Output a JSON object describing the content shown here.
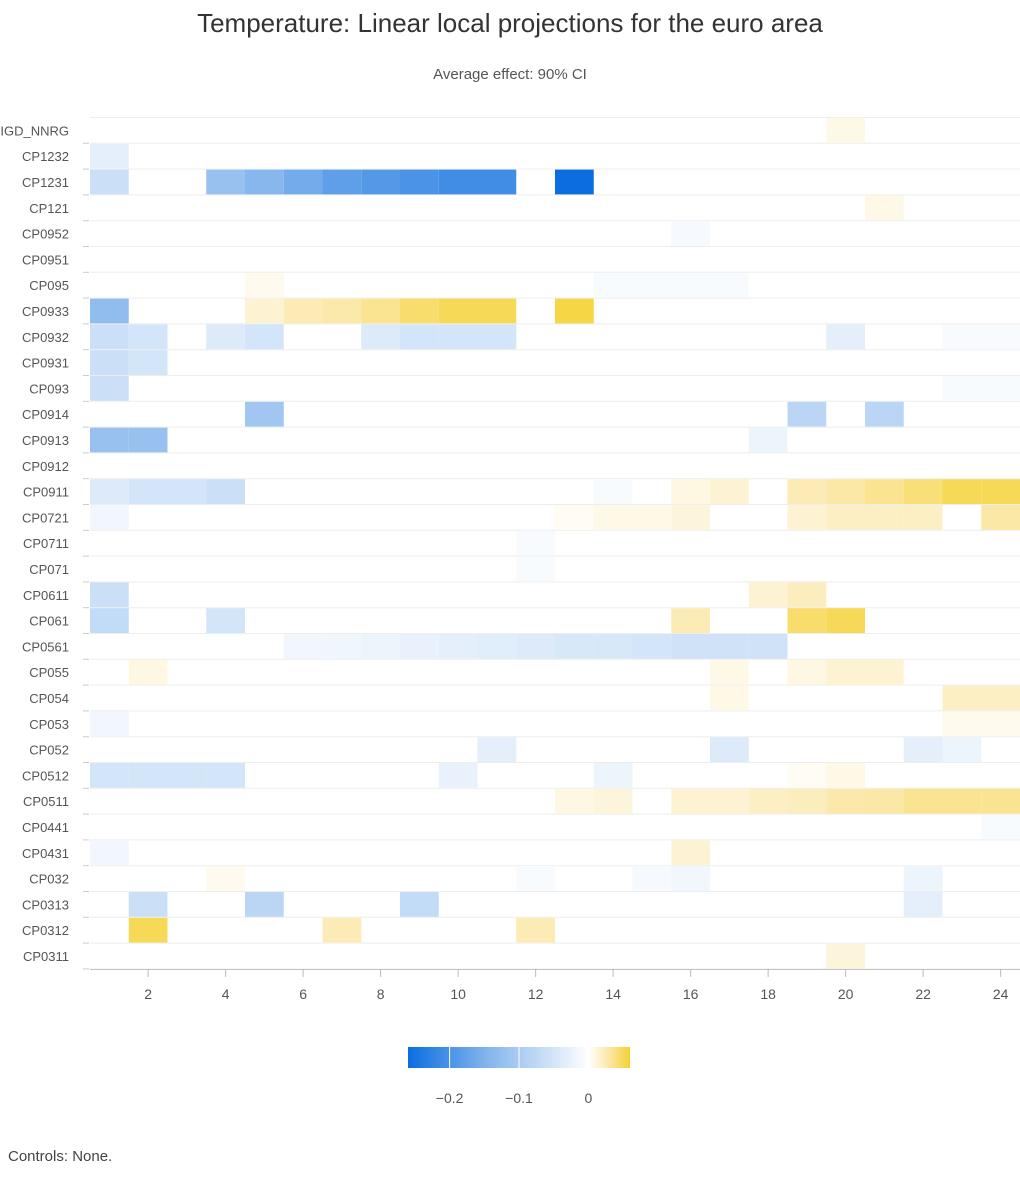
{
  "chart_data": {
    "type": "heatmap",
    "title": "Temperature: Linear local projections for the euro area",
    "subtitle": "Average effect: 90% CI",
    "footnote": "Controls: None.",
    "xlabel": "",
    "ylabel": "",
    "x": [
      1,
      2,
      3,
      4,
      5,
      6,
      7,
      8,
      9,
      10,
      11,
      12,
      13,
      14,
      15,
      16,
      17,
      18,
      19,
      20,
      21,
      22,
      23,
      24
    ],
    "x_ticks": [
      2,
      4,
      6,
      8,
      10,
      12,
      14,
      16,
      18,
      20,
      22,
      24
    ],
    "rows": [
      "IGD_NNRG",
      "CP1232",
      "CP1231",
      "CP121",
      "CP0952",
      "CP0951",
      "CP095",
      "CP0933",
      "CP0932",
      "CP0931",
      "CP093",
      "CP0914",
      "CP0913",
      "CP0912",
      "CP0911",
      "CP0721",
      "CP0711",
      "CP071",
      "CP0611",
      "CP061",
      "CP0561",
      "CP055",
      "CP054",
      "CP053",
      "CP052",
      "CP0512",
      "CP0511",
      "CP0441",
      "CP0431",
      "CP032",
      "CP0313",
      "CP0312",
      "CP0311"
    ],
    "colorscale": {
      "min": -0.26,
      "max": 0.06,
      "stops": [
        {
          "value": -0.26,
          "color": "#0a6ee0"
        },
        {
          "value": -0.15,
          "color": "#7fb2ec"
        },
        {
          "value": -0.05,
          "color": "#d3e5f8"
        },
        {
          "value": 0,
          "color": "#ffffff"
        },
        {
          "value": 0.03,
          "color": "#fbe7a6"
        },
        {
          "value": 0.06,
          "color": "#f5d231"
        }
      ],
      "ticks": [
        {
          "value": -0.2,
          "label": "−0.2"
        },
        {
          "value": -0.1,
          "label": "−0.1"
        },
        {
          "value": 0,
          "label": "0"
        }
      ]
    },
    "cells": [
      {
        "row": "IGD_NNRG",
        "x": 20,
        "value": 0.008
      },
      {
        "row": "CP1232",
        "x": 1,
        "value": -0.03
      },
      {
        "row": "CP1231",
        "x": 1,
        "value": -0.06
      },
      {
        "row": "CP1231",
        "x": 4,
        "value": -0.12
      },
      {
        "row": "CP1231",
        "x": 5,
        "value": -0.14
      },
      {
        "row": "CP1231",
        "x": 6,
        "value": -0.16
      },
      {
        "row": "CP1231",
        "x": 7,
        "value": -0.18
      },
      {
        "row": "CP1231",
        "x": 8,
        "value": -0.19
      },
      {
        "row": "CP1231",
        "x": 9,
        "value": -0.2
      },
      {
        "row": "CP1231",
        "x": 10,
        "value": -0.21
      },
      {
        "row": "CP1231",
        "x": 11,
        "value": -0.21
      },
      {
        "row": "CP1231",
        "x": 13,
        "value": -0.26
      },
      {
        "row": "CP121",
        "x": 21,
        "value": 0.008
      },
      {
        "row": "CP0952",
        "x": 16,
        "value": -0.01
      },
      {
        "row": "CP095",
        "x": 5,
        "value": 0.006
      },
      {
        "row": "CP095",
        "x": 14,
        "value": -0.008
      },
      {
        "row": "CP095",
        "x": 15,
        "value": -0.008
      },
      {
        "row": "CP095",
        "x": 16,
        "value": -0.008
      },
      {
        "row": "CP095",
        "x": 17,
        "value": -0.008
      },
      {
        "row": "CP0933",
        "x": 1,
        "value": -0.13
      },
      {
        "row": "CP0933",
        "x": 5,
        "value": 0.015
      },
      {
        "row": "CP0933",
        "x": 6,
        "value": 0.025
      },
      {
        "row": "CP0933",
        "x": 7,
        "value": 0.028
      },
      {
        "row": "CP0933",
        "x": 8,
        "value": 0.035
      },
      {
        "row": "CP0933",
        "x": 9,
        "value": 0.045
      },
      {
        "row": "CP0933",
        "x": 10,
        "value": 0.05
      },
      {
        "row": "CP0933",
        "x": 11,
        "value": 0.05
      },
      {
        "row": "CP0933",
        "x": 13,
        "value": 0.055
      },
      {
        "row": "CP0932",
        "x": 1,
        "value": -0.06
      },
      {
        "row": "CP0932",
        "x": 2,
        "value": -0.05
      },
      {
        "row": "CP0932",
        "x": 4,
        "value": -0.04
      },
      {
        "row": "CP0932",
        "x": 5,
        "value": -0.05
      },
      {
        "row": "CP0932",
        "x": 8,
        "value": -0.04
      },
      {
        "row": "CP0932",
        "x": 9,
        "value": -0.05
      },
      {
        "row": "CP0932",
        "x": 10,
        "value": -0.05
      },
      {
        "row": "CP0932",
        "x": 11,
        "value": -0.05
      },
      {
        "row": "CP0932",
        "x": 20,
        "value": -0.03
      },
      {
        "row": "CP0932",
        "x": 23,
        "value": -0.008
      },
      {
        "row": "CP0932",
        "x": 24,
        "value": -0.008
      },
      {
        "row": "CP0931",
        "x": 1,
        "value": -0.06
      },
      {
        "row": "CP0931",
        "x": 2,
        "value": -0.05
      },
      {
        "row": "CP093",
        "x": 1,
        "value": -0.06
      },
      {
        "row": "CP093",
        "x": 23,
        "value": -0.008
      },
      {
        "row": "CP093",
        "x": 24,
        "value": -0.008
      },
      {
        "row": "CP0914",
        "x": 5,
        "value": -0.11
      },
      {
        "row": "CP0914",
        "x": 19,
        "value": -0.08
      },
      {
        "row": "CP0914",
        "x": 21,
        "value": -0.08
      },
      {
        "row": "CP0913",
        "x": 1,
        "value": -0.12
      },
      {
        "row": "CP0913",
        "x": 2,
        "value": -0.12
      },
      {
        "row": "CP0913",
        "x": 18,
        "value": -0.02
      },
      {
        "row": "CP0911",
        "x": 1,
        "value": -0.04
      },
      {
        "row": "CP0911",
        "x": 2,
        "value": -0.05
      },
      {
        "row": "CP0911",
        "x": 3,
        "value": -0.05
      },
      {
        "row": "CP0911",
        "x": 4,
        "value": -0.06
      },
      {
        "row": "CP0911",
        "x": 14,
        "value": -0.008
      },
      {
        "row": "CP0911",
        "x": 16,
        "value": 0.01
      },
      {
        "row": "CP0911",
        "x": 17,
        "value": 0.015
      },
      {
        "row": "CP0911",
        "x": 19,
        "value": 0.025
      },
      {
        "row": "CP0911",
        "x": 20,
        "value": 0.03
      },
      {
        "row": "CP0911",
        "x": 21,
        "value": 0.035
      },
      {
        "row": "CP0911",
        "x": 22,
        "value": 0.042
      },
      {
        "row": "CP0911",
        "x": 23,
        "value": 0.05
      },
      {
        "row": "CP0911",
        "x": 24,
        "value": 0.05
      },
      {
        "row": "CP0721",
        "x": 1,
        "value": -0.015
      },
      {
        "row": "CP0721",
        "x": 13,
        "value": 0.004
      },
      {
        "row": "CP0721",
        "x": 14,
        "value": 0.008
      },
      {
        "row": "CP0721",
        "x": 15,
        "value": 0.008
      },
      {
        "row": "CP0721",
        "x": 16,
        "value": 0.012
      },
      {
        "row": "CP0721",
        "x": 19,
        "value": 0.015
      },
      {
        "row": "CP0721",
        "x": 20,
        "value": 0.02
      },
      {
        "row": "CP0721",
        "x": 21,
        "value": 0.02
      },
      {
        "row": "CP0721",
        "x": 22,
        "value": 0.02
      },
      {
        "row": "CP0721",
        "x": 24,
        "value": 0.03
      },
      {
        "row": "CP0711",
        "x": 12,
        "value": -0.008
      },
      {
        "row": "CP071",
        "x": 12,
        "value": -0.008
      },
      {
        "row": "CP0611",
        "x": 1,
        "value": -0.06
      },
      {
        "row": "CP0611",
        "x": 18,
        "value": 0.015
      },
      {
        "row": "CP0611",
        "x": 19,
        "value": 0.022
      },
      {
        "row": "CP061",
        "x": 1,
        "value": -0.07
      },
      {
        "row": "CP061",
        "x": 4,
        "value": -0.05
      },
      {
        "row": "CP061",
        "x": 16,
        "value": 0.025
      },
      {
        "row": "CP061",
        "x": 19,
        "value": 0.045
      },
      {
        "row": "CP061",
        "x": 20,
        "value": 0.05
      },
      {
        "row": "CP0561",
        "x": 6,
        "value": -0.015
      },
      {
        "row": "CP0561",
        "x": 7,
        "value": -0.018
      },
      {
        "row": "CP0561",
        "x": 8,
        "value": -0.022
      },
      {
        "row": "CP0561",
        "x": 9,
        "value": -0.025
      },
      {
        "row": "CP0561",
        "x": 10,
        "value": -0.03
      },
      {
        "row": "CP0561",
        "x": 11,
        "value": -0.035
      },
      {
        "row": "CP0561",
        "x": 12,
        "value": -0.04
      },
      {
        "row": "CP0561",
        "x": 13,
        "value": -0.045
      },
      {
        "row": "CP0561",
        "x": 14,
        "value": -0.045
      },
      {
        "row": "CP0561",
        "x": 15,
        "value": -0.05
      },
      {
        "row": "CP0561",
        "x": 16,
        "value": -0.055
      },
      {
        "row": "CP0561",
        "x": 17,
        "value": -0.055
      },
      {
        "row": "CP0561",
        "x": 18,
        "value": -0.055
      },
      {
        "row": "CP055",
        "x": 2,
        "value": 0.01
      },
      {
        "row": "CP055",
        "x": 17,
        "value": 0.008
      },
      {
        "row": "CP055",
        "x": 19,
        "value": 0.01
      },
      {
        "row": "CP055",
        "x": 20,
        "value": 0.015
      },
      {
        "row": "CP055",
        "x": 21,
        "value": 0.015
      },
      {
        "row": "CP054",
        "x": 17,
        "value": 0.008
      },
      {
        "row": "CP054",
        "x": 23,
        "value": 0.02
      },
      {
        "row": "CP054",
        "x": 24,
        "value": 0.02
      },
      {
        "row": "CP053",
        "x": 1,
        "value": -0.015
      },
      {
        "row": "CP053",
        "x": 23,
        "value": 0.006
      },
      {
        "row": "CP053",
        "x": 24,
        "value": 0.006
      },
      {
        "row": "CP052",
        "x": 11,
        "value": -0.03
      },
      {
        "row": "CP052",
        "x": 17,
        "value": -0.04
      },
      {
        "row": "CP052",
        "x": 22,
        "value": -0.03
      },
      {
        "row": "CP052",
        "x": 23,
        "value": -0.02
      },
      {
        "row": "CP0512",
        "x": 1,
        "value": -0.05
      },
      {
        "row": "CP0512",
        "x": 2,
        "value": -0.05
      },
      {
        "row": "CP0512",
        "x": 3,
        "value": -0.05
      },
      {
        "row": "CP0512",
        "x": 4,
        "value": -0.05
      },
      {
        "row": "CP0512",
        "x": 10,
        "value": -0.025
      },
      {
        "row": "CP0512",
        "x": 14,
        "value": -0.02
      },
      {
        "row": "CP0512",
        "x": 19,
        "value": 0.004
      },
      {
        "row": "CP0512",
        "x": 20,
        "value": 0.008
      },
      {
        "row": "CP0511",
        "x": 13,
        "value": 0.01
      },
      {
        "row": "CP0511",
        "x": 14,
        "value": 0.012
      },
      {
        "row": "CP0511",
        "x": 16,
        "value": 0.015
      },
      {
        "row": "CP0511",
        "x": 17,
        "value": 0.015
      },
      {
        "row": "CP0511",
        "x": 18,
        "value": 0.02
      },
      {
        "row": "CP0511",
        "x": 19,
        "value": 0.022
      },
      {
        "row": "CP0511",
        "x": 20,
        "value": 0.028
      },
      {
        "row": "CP0511",
        "x": 21,
        "value": 0.03
      },
      {
        "row": "CP0511",
        "x": 22,
        "value": 0.035
      },
      {
        "row": "CP0511",
        "x": 23,
        "value": 0.035
      },
      {
        "row": "CP0511",
        "x": 24,
        "value": 0.035
      },
      {
        "row": "CP0441",
        "x": 24,
        "value": -0.008
      },
      {
        "row": "CP0431",
        "x": 1,
        "value": -0.015
      },
      {
        "row": "CP0431",
        "x": 16,
        "value": 0.015
      },
      {
        "row": "CP032",
        "x": 4,
        "value": 0.006
      },
      {
        "row": "CP032",
        "x": 12,
        "value": -0.008
      },
      {
        "row": "CP032",
        "x": 15,
        "value": -0.01
      },
      {
        "row": "CP032",
        "x": 16,
        "value": -0.015
      },
      {
        "row": "CP032",
        "x": 22,
        "value": -0.02
      },
      {
        "row": "CP0313",
        "x": 2,
        "value": -0.06
      },
      {
        "row": "CP0313",
        "x": 5,
        "value": -0.08
      },
      {
        "row": "CP0313",
        "x": 9,
        "value": -0.07
      },
      {
        "row": "CP0313",
        "x": 22,
        "value": -0.03
      },
      {
        "row": "CP0312",
        "x": 2,
        "value": 0.05
      },
      {
        "row": "CP0312",
        "x": 7,
        "value": 0.025
      },
      {
        "row": "CP0312",
        "x": 12,
        "value": 0.025
      },
      {
        "row": "CP0311",
        "x": 20,
        "value": 0.012
      }
    ]
  }
}
